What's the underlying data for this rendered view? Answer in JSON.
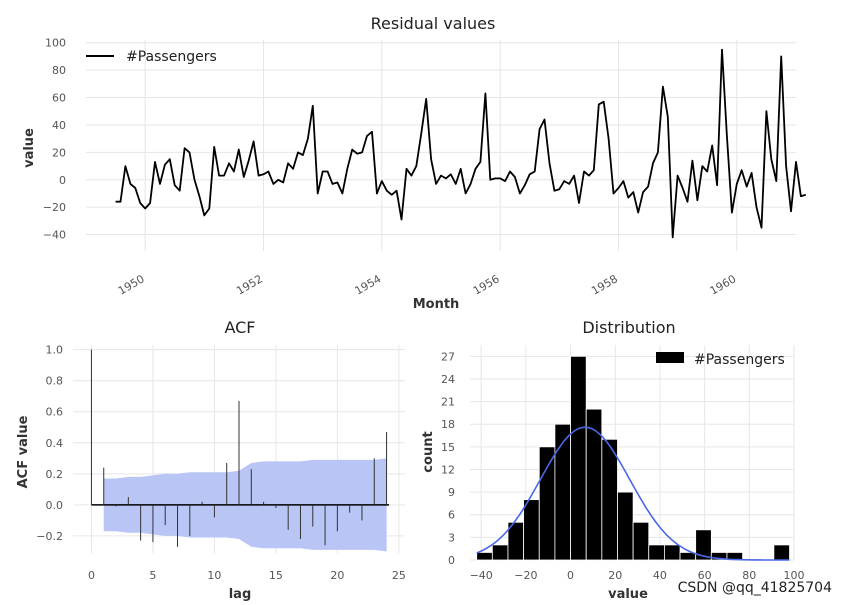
{
  "watermark": "CSDN @qq_41825704",
  "chart_data": [
    {
      "type": "line",
      "title": "Residual values",
      "xlabel": "Month",
      "ylabel": "value",
      "legend": [
        "#Passengers"
      ],
      "legend_position": "top-left",
      "xlim": [
        1949.0,
        1961.0
      ],
      "ylim": [
        -52,
        102
      ],
      "yticks": [
        -40,
        -20,
        0,
        20,
        40,
        60,
        80,
        100
      ],
      "xticks": [
        1950,
        1952,
        1954,
        1956,
        1958,
        1960
      ],
      "ytick_labels": [
        "−40",
        "−20",
        "0",
        "20",
        "40",
        "60",
        "80",
        "100"
      ],
      "xtick_labels": [
        "1950",
        "1952",
        "1954",
        "1956",
        "1958",
        "1960"
      ],
      "grid": true,
      "x_start": 1949.5,
      "x_step": 0.08333,
      "series": [
        {
          "name": "#Passengers",
          "values": [
            -16,
            -16,
            10,
            -3,
            -6,
            -17,
            -21,
            -17,
            13,
            -3,
            11,
            15,
            -4,
            -8,
            23,
            20,
            0,
            -12,
            -26,
            -21,
            24,
            3,
            3,
            12,
            6,
            22,
            2,
            14,
            28,
            3,
            4,
            6,
            -3,
            0,
            -2,
            12,
            8,
            20,
            18,
            30,
            54,
            -10,
            6,
            6,
            -3,
            -2,
            -10,
            8,
            22,
            19,
            20,
            32,
            35,
            -10,
            -1,
            -8,
            -11,
            -8,
            -29,
            8,
            3,
            10,
            34,
            59,
            15,
            -3,
            3,
            1,
            4,
            -3,
            8,
            -10,
            -3,
            8,
            13,
            63,
            0,
            1,
            1,
            -1,
            6,
            2,
            -10,
            -4,
            4,
            6,
            37,
            44,
            12,
            -8,
            -7,
            -1,
            -3,
            3,
            -17,
            6,
            3,
            7,
            55,
            57,
            30,
            -10,
            -6,
            -1,
            -13,
            -9,
            -24,
            -9,
            -5,
            12,
            20,
            68,
            46,
            -42,
            3,
            -6,
            -16,
            14,
            -15,
            10,
            6,
            25,
            -4,
            95,
            32,
            -24,
            -3,
            7,
            -5,
            5,
            -20,
            -35,
            50,
            15,
            -1,
            90,
            10,
            -23,
            13,
            -12,
            -11
          ]
        }
      ]
    },
    {
      "type": "bar",
      "title": "ACF",
      "xlabel": "lag",
      "ylabel": "ACF value",
      "xlim": [
        -1.5,
        25.5
      ],
      "ylim": [
        -0.31,
        1.03
      ],
      "xticks": [
        0,
        5,
        10,
        15,
        20,
        25
      ],
      "yticks": [
        -0.2,
        0.0,
        0.2,
        0.4,
        0.6,
        0.8,
        1.0
      ],
      "ytick_labels": [
        "−0.2",
        "0.0",
        "0.2",
        "0.4",
        "0.6",
        "0.8",
        "1.0"
      ],
      "xtick_labels": [
        "0",
        "5",
        "10",
        "15",
        "20",
        "25"
      ],
      "grid": true,
      "lags": [
        0,
        1,
        2,
        3,
        4,
        5,
        6,
        7,
        8,
        9,
        10,
        11,
        12,
        13,
        14,
        15,
        16,
        17,
        18,
        19,
        20,
        21,
        22,
        23,
        24
      ],
      "values": [
        1.0,
        0.24,
        -0.01,
        0.05,
        -0.23,
        -0.24,
        -0.13,
        -0.27,
        -0.2,
        0.02,
        -0.08,
        0.27,
        0.67,
        0.23,
        0.02,
        -0.02,
        -0.16,
        -0.22,
        -0.14,
        -0.26,
        -0.17,
        -0.05,
        -0.1,
        0.3,
        0.47
      ],
      "conf_band": {
        "lags": [
          1,
          2,
          3,
          4,
          5,
          6,
          7,
          8,
          9,
          10,
          11,
          12,
          13,
          14,
          15,
          16,
          17,
          18,
          19,
          20,
          21,
          22,
          23,
          24
        ],
        "upper": [
          0.17,
          0.17,
          0.18,
          0.18,
          0.19,
          0.2,
          0.2,
          0.21,
          0.21,
          0.21,
          0.21,
          0.22,
          0.27,
          0.28,
          0.28,
          0.28,
          0.28,
          0.29,
          0.29,
          0.29,
          0.29,
          0.29,
          0.29,
          0.3
        ],
        "color": "#b8c5f5"
      }
    },
    {
      "type": "bar",
      "title": "Distribution",
      "xlabel": "value",
      "ylabel": "count",
      "legend": [
        "#Passengers"
      ],
      "legend_position": "top-right",
      "xlim": [
        -45,
        100
      ],
      "ylim": [
        0,
        28.5
      ],
      "xticks": [
        -40,
        -20,
        0,
        20,
        40,
        60,
        80,
        100
      ],
      "xtick_labels": [
        "−40",
        "−20",
        "0",
        "20",
        "40",
        "60",
        "80",
        "100"
      ],
      "yticks": [
        0,
        3,
        6,
        9,
        12,
        15,
        18,
        21,
        24,
        27
      ],
      "ytick_labels": [
        "0",
        "3",
        "6",
        "9",
        "12",
        "15",
        "18",
        "21",
        "24",
        "27"
      ],
      "grid": true,
      "bin_edges": [
        -42,
        -35,
        -28,
        -21,
        -14,
        -7,
        0,
        7,
        14,
        21,
        28,
        35,
        42,
        49,
        56,
        63,
        70,
        77,
        84,
        91,
        98
      ],
      "counts": [
        1,
        2,
        5,
        8,
        15,
        18,
        27,
        20,
        16,
        9,
        5,
        2,
        2,
        1,
        4,
        1,
        1,
        0,
        0,
        2
      ],
      "density_curve": {
        "mean": 6.5,
        "std": 20,
        "peak": 17.6,
        "color": "#4a68e6"
      }
    }
  ]
}
